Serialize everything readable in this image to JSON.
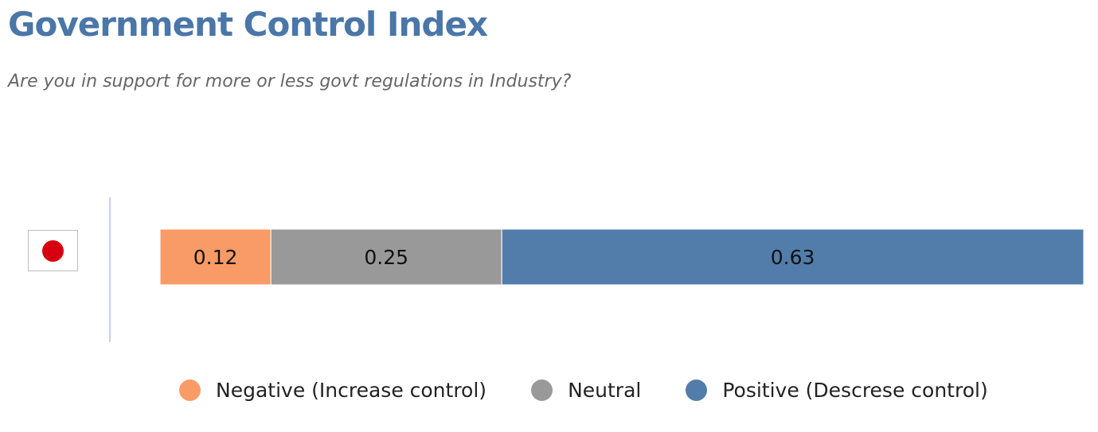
{
  "title": "Government Control Index",
  "subtitle": "Are you in support for more or less govt regulations in Industry?",
  "row": {
    "flag_icon": "japan-flag-icon",
    "flag_color": "#d7000f"
  },
  "chart_data": {
    "type": "bar",
    "stacked": true,
    "orientation": "horizontal",
    "title": "Government Control Index",
    "subtitle": "Are you in support for more or less govt regulations in Industry?",
    "xlim": [
      0,
      1
    ],
    "grid": false,
    "legend_position": "bottom",
    "series": [
      {
        "name": "Negative (Increase control)",
        "values": [
          0.12
        ],
        "label": "0.12",
        "color": "#f99b66"
      },
      {
        "name": "Neutral",
        "values": [
          0.25
        ],
        "label": "0.25",
        "color": "#999999"
      },
      {
        "name": "Positive (Descrese control)",
        "values": [
          0.63
        ],
        "label": "0.63",
        "color": "#527daa"
      }
    ]
  }
}
